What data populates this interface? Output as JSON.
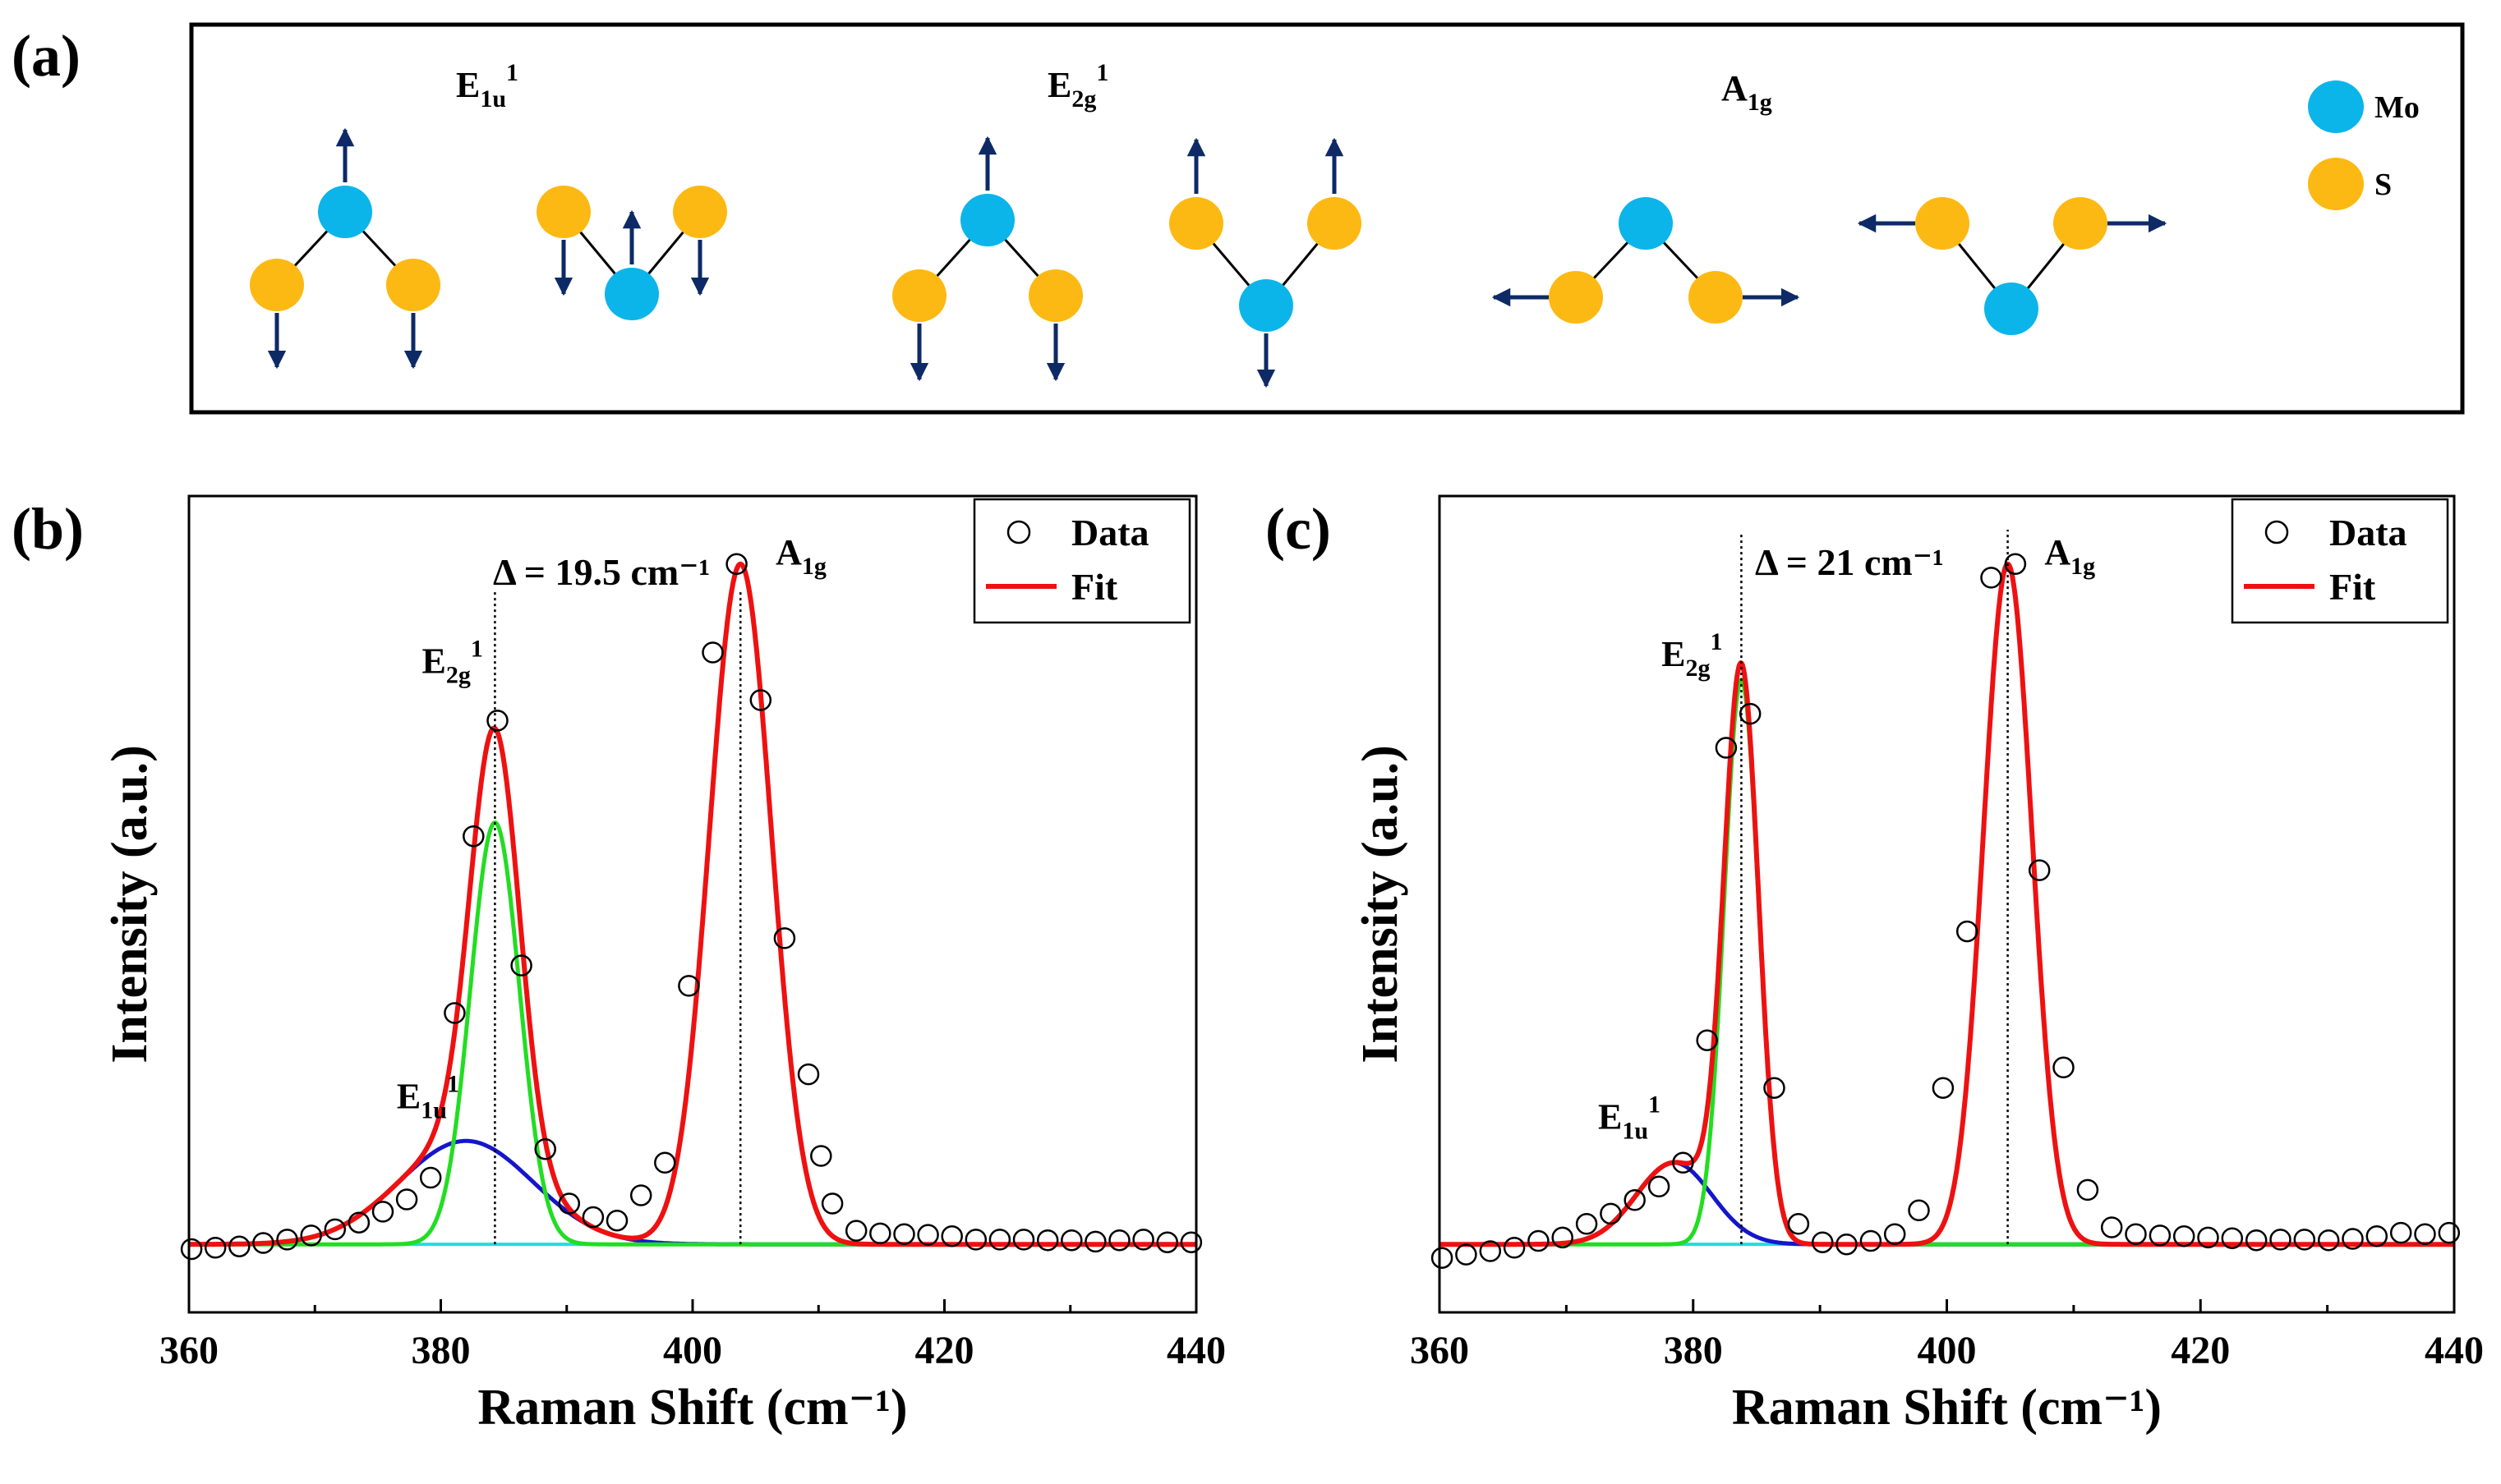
{
  "colors": {
    "mo": "#0bb5ea",
    "s": "#fdb913",
    "arrow": "#0d2a66",
    "fit": "#ee1111",
    "e2g": "#22dd22",
    "e1u": "#1515cc",
    "baseline": "#22dddd"
  },
  "panel_a": {
    "label": "(a)",
    "modes": [
      {
        "base": "E",
        "sub": "1u",
        "sup": "1"
      },
      {
        "base": "E",
        "sub": "2g",
        "sup": "1"
      },
      {
        "base": "A",
        "sub": "1g",
        "sup": ""
      }
    ],
    "legend": [
      {
        "atom": "Mo",
        "color": "#0bb5ea"
      },
      {
        "atom": "S",
        "color": "#fdb913"
      }
    ]
  },
  "chart_data": [
    {
      "panel_label": "(b)",
      "type": "scatter+line",
      "xlabel": "Raman Shift (cm⁻¹)",
      "ylabel": "Intensity (a.u.)",
      "xlim": [
        360,
        440
      ],
      "ylim": [
        -0.1,
        1.1
      ],
      "xticks": [
        360,
        380,
        400,
        420,
        440
      ],
      "legend": {
        "placement": "top-right",
        "entries": [
          "Data",
          "Fit"
        ]
      },
      "delta_label": "Δ = 19.5 cm⁻¹",
      "vlines": [
        384.3,
        403.8
      ],
      "peaks": [
        {
          "name": "E1u1",
          "base": "E",
          "sub": "1u",
          "sup": "1",
          "center": 382.0,
          "height": 0.152,
          "fwhm": 12.5,
          "color": "#1515cc",
          "label_x": 376.5,
          "label_y": 0.2
        },
        {
          "name": "E2g1",
          "base": "E",
          "sub": "2g",
          "sup": "1",
          "center": 384.3,
          "height": 0.62,
          "fwhm": 4.6,
          "color": "#22dd22",
          "label_x": 378.5,
          "label_y": 0.84
        },
        {
          "name": "A1g",
          "base": "A",
          "sub": "1g",
          "sup": "",
          "center": 403.8,
          "height": 1.0,
          "fwhm": 5.8,
          "color": "#ee1111",
          "label_x": 406.6,
          "label_y": 1.0
        }
      ],
      "data_points": [
        [
          360.2,
          -0.007
        ],
        [
          362.1,
          -0.005
        ],
        [
          364.0,
          -0.003
        ],
        [
          365.9,
          0.002
        ],
        [
          367.8,
          0.007
        ],
        [
          369.7,
          0.013
        ],
        [
          371.6,
          0.022
        ],
        [
          373.5,
          0.032
        ],
        [
          375.4,
          0.048
        ],
        [
          377.3,
          0.066
        ],
        [
          379.2,
          0.098
        ],
        [
          381.1,
          0.34
        ],
        [
          382.6,
          0.6
        ],
        [
          384.5,
          0.77
        ],
        [
          386.4,
          0.41
        ],
        [
          388.3,
          0.14
        ],
        [
          390.2,
          0.06
        ],
        [
          392.1,
          0.04
        ],
        [
          394.0,
          0.035
        ],
        [
          395.9,
          0.072
        ],
        [
          397.8,
          0.12
        ],
        [
          399.7,
          0.38
        ],
        [
          401.6,
          0.87
        ],
        [
          403.5,
          1.0
        ],
        [
          405.4,
          0.8
        ],
        [
          407.3,
          0.45
        ],
        [
          409.2,
          0.25
        ],
        [
          410.2,
          0.13
        ],
        [
          411.1,
          0.06
        ],
        [
          413.0,
          0.02
        ],
        [
          414.9,
          0.016
        ],
        [
          416.8,
          0.015
        ],
        [
          418.7,
          0.014
        ],
        [
          420.6,
          0.012
        ],
        [
          422.5,
          0.007
        ],
        [
          424.4,
          0.007
        ],
        [
          426.3,
          0.007
        ],
        [
          428.2,
          0.006
        ],
        [
          430.1,
          0.006
        ],
        [
          432.0,
          0.004
        ],
        [
          433.9,
          0.006
        ],
        [
          435.8,
          0.007
        ],
        [
          437.7,
          0.003
        ],
        [
          439.6,
          0.003
        ]
      ]
    },
    {
      "panel_label": "(c)",
      "type": "scatter+line",
      "xlabel": "Raman Shift (cm⁻¹)",
      "ylabel": "Intensity (a.u.)",
      "xlim": [
        360,
        440
      ],
      "ylim": [
        -0.1,
        1.1
      ],
      "xticks": [
        360,
        380,
        400,
        420,
        440
      ],
      "legend": {
        "placement": "top-right",
        "entries": [
          "Data",
          "Fit"
        ]
      },
      "delta_label": "Δ = 21 cm⁻¹",
      "vlines": [
        383.8,
        404.8
      ],
      "peaks": [
        {
          "name": "E1u1",
          "base": "E",
          "sub": "1u",
          "sup": "1",
          "center": 378.5,
          "height": 0.12,
          "fwhm": 7.0,
          "color": "#1515cc",
          "label_x": 372.5,
          "label_y": 0.17
        },
        {
          "name": "E2g1",
          "base": "E",
          "sub": "2g",
          "sup": "1",
          "center": 383.8,
          "height": 0.83,
          "fwhm": 3.2,
          "color": "#22dd22",
          "label_x": 377.5,
          "label_y": 0.85
        },
        {
          "name": "A1g",
          "base": "A",
          "sub": "1g",
          "sup": "",
          "center": 404.8,
          "height": 1.0,
          "fwhm": 4.5,
          "color": "#ee1111",
          "label_x": 407.7,
          "label_y": 1.0
        }
      ],
      "data_points": [
        [
          360.2,
          -0.02
        ],
        [
          362.1,
          -0.015
        ],
        [
          364.0,
          -0.01
        ],
        [
          365.9,
          -0.005
        ],
        [
          367.8,
          0.005
        ],
        [
          369.7,
          0.01
        ],
        [
          371.6,
          0.03
        ],
        [
          373.5,
          0.045
        ],
        [
          375.4,
          0.065
        ],
        [
          377.3,
          0.085
        ],
        [
          379.2,
          0.12
        ],
        [
          381.1,
          0.3
        ],
        [
          382.6,
          0.73
        ],
        [
          384.5,
          0.78
        ],
        [
          386.4,
          0.23
        ],
        [
          388.3,
          0.03
        ],
        [
          390.2,
          0.003
        ],
        [
          392.1,
          0.0
        ],
        [
          394.0,
          0.005
        ],
        [
          395.9,
          0.015
        ],
        [
          397.8,
          0.05
        ],
        [
          399.7,
          0.23
        ],
        [
          401.6,
          0.46
        ],
        [
          403.5,
          0.98
        ],
        [
          405.4,
          1.0
        ],
        [
          407.3,
          0.55
        ],
        [
          409.2,
          0.26
        ],
        [
          411.1,
          0.08
        ],
        [
          413.0,
          0.025
        ],
        [
          414.9,
          0.015
        ],
        [
          416.8,
          0.013
        ],
        [
          418.7,
          0.012
        ],
        [
          420.6,
          0.01
        ],
        [
          422.5,
          0.009
        ],
        [
          424.4,
          0.006
        ],
        [
          426.3,
          0.007
        ],
        [
          428.2,
          0.007
        ],
        [
          430.1,
          0.006
        ],
        [
          432.0,
          0.008
        ],
        [
          433.9,
          0.012
        ],
        [
          435.8,
          0.017
        ],
        [
          437.7,
          0.015
        ],
        [
          439.6,
          0.017
        ]
      ]
    }
  ]
}
